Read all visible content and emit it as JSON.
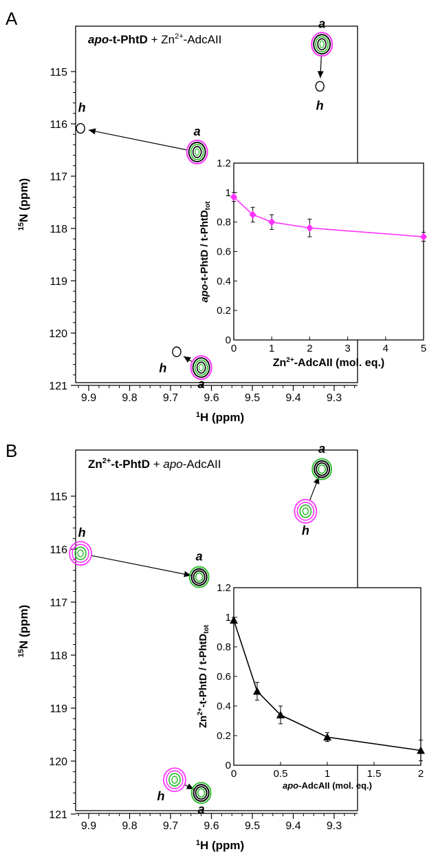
{
  "panel_a": {
    "label": "A",
    "main_title": {
      "bold": "apo",
      "bold2": "-t-PhtD",
      "rest": " + Zn",
      "sup": "2+",
      "rest2": "-AdcAII"
    },
    "y_axis_label": {
      "sup": "15",
      "text": "N (ppm)"
    },
    "x_axis_label": {
      "sup": "1",
      "text": "H (ppm)"
    },
    "x_ticks": [
      "9.9",
      "9.8",
      "9.7",
      "9.6",
      "9.5",
      "9.4",
      "9.3"
    ],
    "y_ticks": [
      "115",
      "116",
      "117",
      "118",
      "119",
      "120",
      "121"
    ],
    "peak_labels": [
      "a",
      "h",
      "h",
      "a",
      "h",
      "a"
    ],
    "inset_y_label": "apo-t-PhtD / t-PhtDtot",
    "inset_x_label": {
      "sup": "2+",
      "pre": "Zn",
      "text": "-AdcAII (mol. eq.)"
    }
  },
  "panel_b": {
    "label": "B",
    "main_title": {
      "pre": "Zn",
      "sup": "2+",
      "bold": "-t-PhtD",
      "rest": " + ",
      "italic": "apo",
      "rest2": "-AdcAII"
    },
    "y_axis_label": {
      "sup": "15",
      "text": "N (ppm)"
    },
    "x_axis_label": {
      "sup": "1",
      "text": "H (ppm)"
    },
    "x_ticks": [
      "9.9",
      "9.8",
      "9.7",
      "9.6",
      "9.5",
      "9.4",
      "9.3"
    ],
    "y_ticks": [
      "115",
      "116",
      "117",
      "118",
      "119",
      "120",
      "121"
    ],
    "peak_labels": [
      "a",
      "h",
      "h",
      "a",
      "h",
      "a"
    ],
    "inset_y_label": "Zn2+-t-PhtD / t-PhtDtot",
    "inset_x_label": {
      "italic": "apo",
      "text": "-AdcAII (mol. eq.)"
    }
  },
  "colors": {
    "magenta": "#ff33ff",
    "green": "#22bb22",
    "black": "#000000"
  },
  "chart_data": [
    {
      "type": "scatter",
      "panel": "A",
      "title": "apo-t-PhtD + Zn2+-AdcAII",
      "xlabel": "1H (ppm)",
      "ylabel": "15N (ppm)",
      "xlim": [
        9.95,
        9.25
      ],
      "ylim": [
        114.2,
        121.1
      ],
      "x_ticks": [
        9.9,
        9.8,
        9.7,
        9.6,
        9.5,
        9.4,
        9.3
      ],
      "y_ticks": [
        115,
        116,
        117,
        118,
        119,
        120,
        121
      ],
      "peaks": [
        {
          "label": "a",
          "x": 9.33,
          "y": 114.5
        },
        {
          "label": "h",
          "x": 9.335,
          "y": 115.3
        },
        {
          "label": "h",
          "x": 9.92,
          "y": 116.1
        },
        {
          "label": "a",
          "x": 9.635,
          "y": 116.55
        },
        {
          "label": "h",
          "x": 9.685,
          "y": 120.35
        },
        {
          "label": "a",
          "x": 9.625,
          "y": 120.65
        }
      ],
      "shifts": [
        {
          "from": "a",
          "x0": 9.33,
          "y0": 114.5,
          "x1": 9.335,
          "y1": 115.3
        },
        {
          "from": "a",
          "x0": 9.635,
          "y0": 116.55,
          "x1": 9.92,
          "y1": 116.1
        },
        {
          "from": "a",
          "x0": 9.625,
          "y0": 120.65,
          "x1": 9.685,
          "y1": 120.35
        }
      ]
    },
    {
      "type": "line",
      "panel": "A-inset",
      "xlabel": "Zn2+-AdcAII (mol. eq.)",
      "ylabel": "apo-t-PhtD / t-PhtDtot",
      "xlim": [
        0,
        5
      ],
      "ylim": [
        0,
        1.2
      ],
      "x_ticks": [
        0,
        1,
        2,
        3,
        4,
        5
      ],
      "y_ticks": [
        0,
        0.2,
        0.4,
        0.6,
        0.8,
        1,
        1.2
      ],
      "marker": "diamond",
      "series": [
        {
          "x": [
            0,
            0.5,
            1,
            2,
            5
          ],
          "y": [
            0.97,
            0.85,
            0.8,
            0.76,
            0.7
          ],
          "err": [
            0.03,
            0.05,
            0.05,
            0.06,
            0.03
          ]
        }
      ]
    },
    {
      "type": "scatter",
      "panel": "B",
      "title": "Zn2+-t-PhtD + apo-AdcAII",
      "xlabel": "1H (ppm)",
      "ylabel": "15N (ppm)",
      "xlim": [
        9.95,
        9.25
      ],
      "ylim": [
        114.2,
        121.1
      ],
      "x_ticks": [
        9.9,
        9.8,
        9.7,
        9.6,
        9.5,
        9.4,
        9.3
      ],
      "y_ticks": [
        115,
        116,
        117,
        118,
        119,
        120,
        121
      ],
      "peaks": [
        {
          "label": "a",
          "x": 9.33,
          "y": 114.5
        },
        {
          "label": "h",
          "x": 9.37,
          "y": 115.3
        },
        {
          "label": "h",
          "x": 9.92,
          "y": 116.1
        },
        {
          "label": "a",
          "x": 9.63,
          "y": 116.55
        },
        {
          "label": "h",
          "x": 9.69,
          "y": 120.4
        },
        {
          "label": "a",
          "x": 9.625,
          "y": 120.65
        }
      ],
      "shifts": [
        {
          "from": "h",
          "x0": 9.37,
          "y0": 115.3,
          "x1": 9.33,
          "y1": 114.5
        },
        {
          "from": "h",
          "x0": 9.92,
          "y0": 116.1,
          "x1": 9.63,
          "y1": 116.55
        },
        {
          "from": "h",
          "x0": 9.69,
          "y0": 120.4,
          "x1": 9.625,
          "y1": 120.65
        }
      ]
    },
    {
      "type": "line",
      "panel": "B-inset",
      "xlabel": "apo-AdcAII (mol. eq.)",
      "ylabel": "Zn2+-t-PhtD / t-PhtDtot",
      "xlim": [
        0,
        2
      ],
      "ylim": [
        0,
        1.2
      ],
      "x_ticks": [
        0,
        0.5,
        1,
        1.5,
        2
      ],
      "y_ticks": [
        0,
        0.2,
        0.4,
        0.6,
        0.8,
        1,
        1.2
      ],
      "marker": "triangle",
      "series": [
        {
          "x": [
            0,
            0.25,
            0.5,
            1,
            2
          ],
          "y": [
            0.98,
            0.5,
            0.34,
            0.19,
            0.1
          ],
          "err": [
            0.02,
            0.06,
            0.06,
            0.03,
            0.07
          ]
        }
      ]
    }
  ]
}
